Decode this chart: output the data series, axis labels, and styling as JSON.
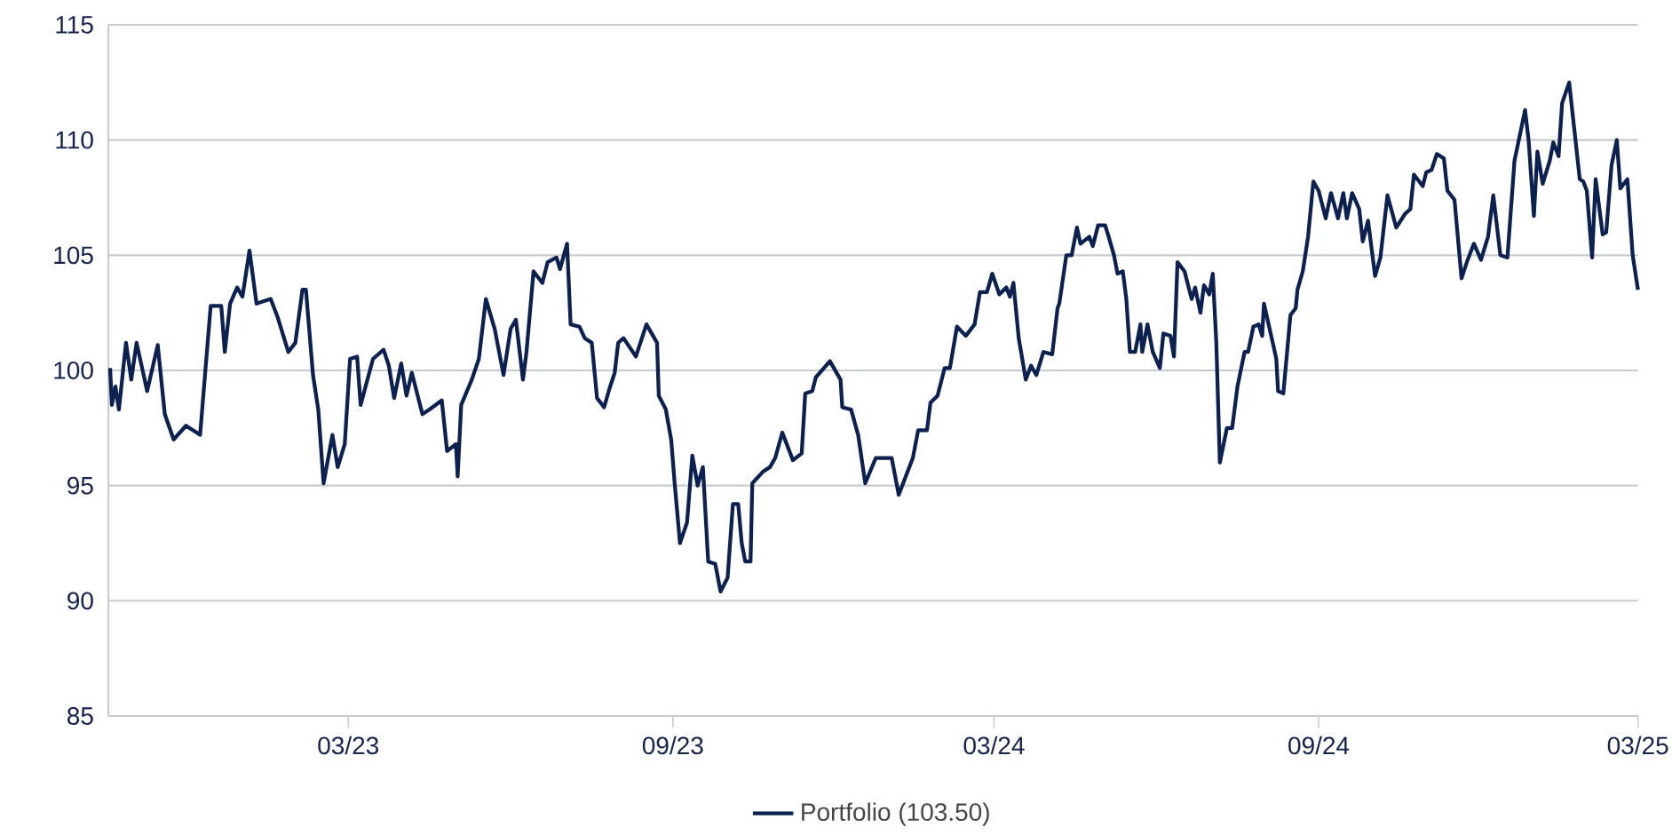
{
  "chart_data": {
    "type": "line",
    "xlim": [
      "2022-10-16",
      "2025-03-01"
    ],
    "xticks": [
      {
        "value": "2023-03-01",
        "label": "03/23"
      },
      {
        "value": "2023-09-01",
        "label": "09/23"
      },
      {
        "value": "2024-03-01",
        "label": "03/24"
      },
      {
        "value": "2024-09-01",
        "label": "09/24"
      },
      {
        "value": "2025-03-01",
        "label": "03/25"
      }
    ],
    "ylim": [
      85,
      115
    ],
    "yticks": [
      85,
      90,
      95,
      100,
      105,
      110,
      115
    ],
    "grid": "y",
    "legend": "bottom",
    "x": [
      "2022-10-17",
      "2022-10-18",
      "2022-10-20",
      "2022-10-22",
      "2022-10-26",
      "2022-10-29",
      "2022-11-01",
      "2022-11-07",
      "2022-11-13",
      "2022-11-17",
      "2022-11-22",
      "2022-11-29",
      "2022-12-07",
      "2022-12-13",
      "2022-12-19",
      "2022-12-21",
      "2022-12-24",
      "2022-12-28",
      "2022-12-31",
      "2023-01-04",
      "2023-01-08",
      "2023-01-16",
      "2023-01-20",
      "2023-01-26",
      "2023-01-30",
      "2023-02-03",
      "2023-02-05",
      "2023-02-09",
      "2023-02-12",
      "2023-02-15",
      "2023-02-20",
      "2023-02-23",
      "2023-02-27",
      "2023-03-02",
      "2023-03-06",
      "2023-03-08",
      "2023-03-15",
      "2023-03-21",
      "2023-03-24",
      "2023-03-27",
      "2023-03-31",
      "2023-04-03",
      "2023-04-06",
      "2023-04-12",
      "2023-04-16",
      "2023-04-23",
      "2023-04-26",
      "2023-05-01",
      "2023-05-02",
      "2023-05-04",
      "2023-05-10",
      "2023-05-14",
      "2023-05-18",
      "2023-05-23",
      "2023-05-28",
      "2023-06-01",
      "2023-06-04",
      "2023-06-08",
      "2023-06-10",
      "2023-06-14",
      "2023-06-19",
      "2023-06-22",
      "2023-06-27",
      "2023-06-29",
      "2023-07-03",
      "2023-07-05",
      "2023-07-10",
      "2023-07-13",
      "2023-07-17",
      "2023-07-20",
      "2023-07-24",
      "2023-07-27",
      "2023-07-30",
      "2023-08-01",
      "2023-08-04",
      "2023-08-11",
      "2023-08-17",
      "2023-08-23",
      "2023-08-24",
      "2023-08-28",
      "2023-08-31",
      "2023-09-02",
      "2023-09-05",
      "2023-09-09",
      "2023-09-12",
      "2023-09-15",
      "2023-09-18",
      "2023-09-21",
      "2023-09-25",
      "2023-09-28",
      "2023-10-02",
      "2023-10-05",
      "2023-10-08",
      "2023-10-10",
      "2023-10-12",
      "2023-10-15",
      "2023-10-16",
      "2023-10-22",
      "2023-10-26",
      "2023-10-29",
      "2023-11-02",
      "2023-11-08",
      "2023-11-13",
      "2023-11-15",
      "2023-11-19",
      "2023-11-21",
      "2023-11-29",
      "2023-12-05",
      "2023-12-06",
      "2023-12-11",
      "2023-12-15",
      "2023-12-19",
      "2023-12-25",
      "2023-12-30",
      "2024-01-03",
      "2024-01-07",
      "2024-01-12",
      "2024-01-15",
      "2024-01-18",
      "2024-01-23",
      "2024-01-25",
      "2024-01-29",
      "2024-02-02",
      "2024-02-05",
      "2024-02-09",
      "2024-02-14",
      "2024-02-19",
      "2024-02-22",
      "2024-02-26",
      "2024-02-29",
      "2024-03-04",
      "2024-03-08",
      "2024-03-10",
      "2024-03-12",
      "2024-03-15",
      "2024-03-19",
      "2024-03-22",
      "2024-03-25",
      "2024-03-29",
      "2024-04-03",
      "2024-04-06",
      "2024-04-07",
      "2024-04-11",
      "2024-04-14",
      "2024-04-17",
      "2024-04-19",
      "2024-04-24",
      "2024-04-26",
      "2024-04-29",
      "2024-05-03",
      "2024-05-05",
      "2024-05-08",
      "2024-05-10",
      "2024-05-13",
      "2024-05-15",
      "2024-05-17",
      "2024-05-20",
      "2024-05-23",
      "2024-05-24",
      "2024-05-27",
      "2024-05-30",
      "2024-06-03",
      "2024-06-05",
      "2024-06-09",
      "2024-06-11",
      "2024-06-13",
      "2024-06-17",
      "2024-06-21",
      "2024-06-23",
      "2024-06-26",
      "2024-06-28",
      "2024-07-01",
      "2024-07-03",
      "2024-07-05",
      "2024-07-07",
      "2024-07-11",
      "2024-07-14",
      "2024-07-17",
      "2024-07-21",
      "2024-07-23",
      "2024-07-26",
      "2024-07-29",
      "2024-07-31",
      "2024-08-01",
      "2024-08-06",
      "2024-08-08",
      "2024-08-09",
      "2024-08-12",
      "2024-08-16",
      "2024-08-19",
      "2024-08-20",
      "2024-08-23",
      "2024-08-26",
      "2024-08-29",
      "2024-09-01",
      "2024-09-05",
      "2024-09-08",
      "2024-09-12",
      "2024-09-15",
      "2024-09-17",
      "2024-09-20",
      "2024-09-24",
      "2024-09-26",
      "2024-09-29",
      "2024-10-03",
      "2024-10-06",
      "2024-10-10",
      "2024-10-15",
      "2024-10-20",
      "2024-10-23",
      "2024-10-25",
      "2024-10-30",
      "2024-11-01",
      "2024-11-04",
      "2024-11-07",
      "2024-11-11",
      "2024-11-13",
      "2024-11-17",
      "2024-11-21",
      "2024-11-24",
      "2024-11-28",
      "2024-12-02",
      "2024-12-06",
      "2024-12-09",
      "2024-12-13",
      "2024-12-17",
      "2024-12-21",
      "2024-12-27",
      "2024-12-29",
      "2025-01-01",
      "2025-01-03",
      "2025-01-06",
      "2025-01-10",
      "2025-01-12",
      "2025-01-15",
      "2025-01-17",
      "2025-01-21",
      "2025-01-24",
      "2025-01-27",
      "2025-01-29",
      "2025-01-31",
      "2025-02-03",
      "2025-02-05",
      "2025-02-09",
      "2025-02-11",
      "2025-02-14",
      "2025-02-17",
      "2025-02-19",
      "2025-02-23",
      "2025-02-26",
      "2025-03-01"
    ],
    "series": [
      {
        "name": "Portfolio (103.50)",
        "color": "#0c2150",
        "values": [
          100.1,
          98.5,
          99.3,
          98.3,
          101.2,
          99.6,
          101.2,
          99.1,
          101.1,
          98.1,
          97.0,
          97.6,
          97.2,
          102.8,
          102.8,
          100.8,
          102.9,
          103.6,
          103.2,
          105.2,
          102.9,
          103.1,
          102.3,
          100.8,
          101.2,
          103.5,
          103.5,
          99.8,
          98.3,
          95.1,
          97.2,
          95.8,
          96.8,
          100.5,
          100.6,
          98.5,
          100.5,
          100.9,
          100.2,
          98.8,
          100.3,
          98.9,
          99.9,
          98.1,
          98.3,
          98.7,
          96.5,
          96.8,
          95.4,
          98.5,
          99.6,
          100.5,
          103.1,
          101.8,
          99.8,
          101.8,
          102.2,
          99.6,
          100.8,
          104.3,
          103.8,
          104.7,
          104.9,
          104.4,
          105.5,
          102.0,
          101.9,
          101.4,
          101.2,
          98.8,
          98.4,
          99.2,
          99.9,
          101.2,
          101.4,
          100.6,
          102.0,
          101.2,
          98.9,
          98.3,
          97.0,
          95.1,
          92.5,
          93.4,
          96.3,
          95.0,
          95.8,
          91.7,
          91.6,
          90.4,
          91.0,
          94.2,
          94.2,
          92.5,
          91.7,
          91.7,
          95.1,
          95.6,
          95.8,
          96.2,
          97.3,
          96.1,
          96.4,
          99.0,
          99.1,
          99.7,
          100.4,
          99.6,
          98.4,
          98.3,
          97.2,
          95.1,
          96.2,
          96.2,
          96.2,
          94.6,
          95.6,
          96.2,
          97.4,
          97.4,
          98.6,
          98.9,
          100.1,
          100.1,
          101.9,
          101.5,
          102.0,
          103.4,
          103.4,
          104.2,
          103.3,
          103.6,
          103.2,
          103.8,
          101.4,
          99.6,
          100.2,
          99.8,
          100.8,
          100.7,
          102.7,
          102.9,
          105.0,
          105.0,
          106.2,
          105.5,
          105.8,
          105.4,
          106.3,
          106.3,
          105.8,
          105.0,
          104.2,
          104.3,
          103.1,
          100.8,
          100.8,
          102.0,
          100.8,
          102.0,
          100.8,
          100.1,
          101.6,
          101.5,
          100.6,
          104.7,
          104.3,
          103.1,
          103.6,
          102.5,
          103.7,
          103.3,
          104.2,
          101.2,
          96.0,
          97.5,
          97.5,
          99.3,
          100.8,
          100.8,
          101.9,
          102.0,
          101.5,
          102.9,
          101.2,
          100.5,
          99.1,
          99.0,
          102.4,
          102.7,
          103.5,
          104.3,
          105.8,
          108.2,
          107.8,
          106.6,
          107.7,
          106.6,
          107.7,
          106.6,
          107.7,
          107.0,
          105.6,
          106.5,
          104.1,
          104.9,
          107.6,
          106.2,
          106.8,
          107.0,
          108.5,
          108.0,
          108.6,
          108.7,
          109.4,
          109.2,
          107.8,
          107.4,
          104.0,
          104.7,
          105.5,
          104.8,
          105.8,
          107.6,
          105.0,
          104.9,
          109.1,
          111.3,
          110.0,
          106.7,
          109.5,
          108.1,
          109.1,
          109.9,
          109.3,
          111.6,
          112.5,
          110.4,
          108.3,
          108.2,
          107.8,
          104.9,
          108.3,
          105.9,
          106.0,
          108.9,
          110.0,
          107.9,
          108.3,
          105.0,
          103.5
        ]
      }
    ]
  }
}
